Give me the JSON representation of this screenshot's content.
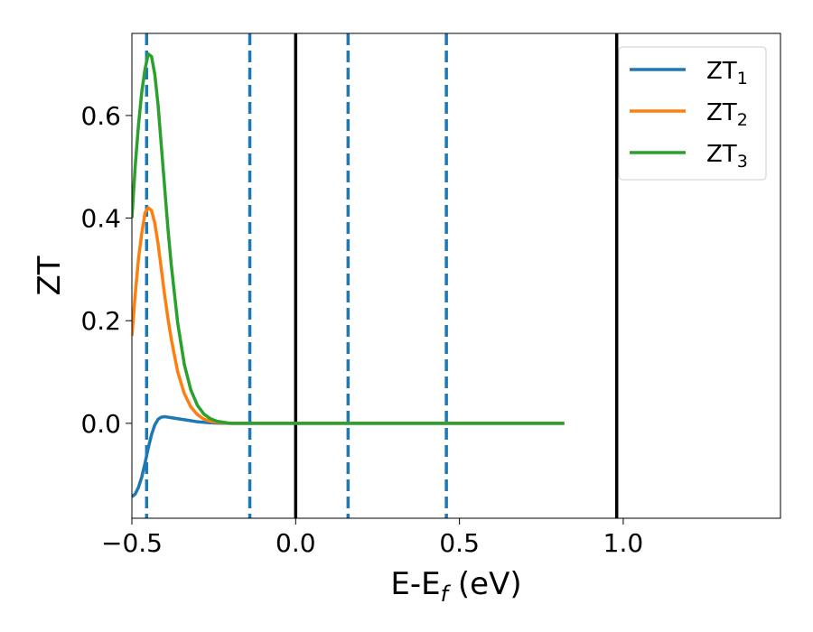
{
  "chart_data": {
    "type": "line",
    "xlabel_main": "E-E",
    "xlabel_sub": "f",
    "xlabel_unit": " (eV)",
    "ylabel": "ZT",
    "xlim": [
      -0.5,
      1.48
    ],
    "ylim": [
      -0.185,
      0.76
    ],
    "xticks": [
      {
        "value": -0.5,
        "label": "−0.5"
      },
      {
        "value": 0.0,
        "label": "0.0"
      },
      {
        "value": 0.5,
        "label": "0.5"
      },
      {
        "value": 1.0,
        "label": "1.0"
      }
    ],
    "yticks": [
      {
        "value": 0.0,
        "label": "0.0"
      },
      {
        "value": 0.2,
        "label": "0.2"
      },
      {
        "value": 0.4,
        "label": "0.4"
      },
      {
        "value": 0.6,
        "label": "0.6"
      }
    ],
    "grid": false,
    "legend_position": "top-right",
    "solid_vlines": [
      0.0,
      0.98
    ],
    "dashed_vlines": [
      -0.455,
      -0.14,
      0.16,
      0.46
    ],
    "series": [
      {
        "name_main": "ZT",
        "name_sub": "1",
        "color": "#1f77b4",
        "x": [
          -0.5,
          -0.49,
          -0.48,
          -0.47,
          -0.46,
          -0.45,
          -0.44,
          -0.43,
          -0.42,
          -0.41,
          -0.4,
          -0.39,
          -0.38,
          -0.36,
          -0.34,
          -0.32,
          -0.3,
          -0.28,
          -0.26,
          -0.24,
          -0.22,
          -0.2,
          -0.18,
          -0.16,
          -0.14,
          0.0,
          0.2,
          0.4,
          0.6,
          0.82
        ],
        "y": [
          -0.143,
          -0.138,
          -0.125,
          -0.105,
          -0.078,
          -0.048,
          -0.022,
          -0.003,
          0.008,
          0.012,
          0.013,
          0.012,
          0.011,
          0.009,
          0.007,
          0.005,
          0.003,
          0.002,
          0.001,
          0.0005,
          0.0002,
          0.0,
          0.0,
          0.0,
          0.0,
          0.0,
          0.0,
          0.0,
          0.0,
          0.0
        ]
      },
      {
        "name_main": "ZT",
        "name_sub": "2",
        "color": "#ff7f0e",
        "x": [
          -0.5,
          -0.49,
          -0.48,
          -0.47,
          -0.46,
          -0.45,
          -0.44,
          -0.43,
          -0.42,
          -0.41,
          -0.4,
          -0.39,
          -0.38,
          -0.36,
          -0.34,
          -0.32,
          -0.3,
          -0.28,
          -0.26,
          -0.24,
          -0.22,
          -0.2,
          -0.18,
          -0.16,
          -0.14,
          0.0,
          0.2,
          0.4,
          0.6,
          0.82
        ],
        "y": [
          0.17,
          0.25,
          0.32,
          0.37,
          0.41,
          0.42,
          0.415,
          0.39,
          0.35,
          0.3,
          0.25,
          0.205,
          0.165,
          0.1,
          0.058,
          0.032,
          0.017,
          0.008,
          0.004,
          0.002,
          0.001,
          0.0,
          0.0,
          0.0,
          0.0,
          0.0,
          0.0,
          0.0,
          0.0,
          0.0
        ]
      },
      {
        "name_main": "ZT",
        "name_sub": "3",
        "color": "#2ca02c",
        "x": [
          -0.5,
          -0.49,
          -0.48,
          -0.47,
          -0.46,
          -0.45,
          -0.44,
          -0.43,
          -0.42,
          -0.41,
          -0.4,
          -0.39,
          -0.38,
          -0.36,
          -0.34,
          -0.32,
          -0.3,
          -0.28,
          -0.26,
          -0.24,
          -0.22,
          -0.2,
          -0.18,
          -0.16,
          -0.14,
          0.0,
          0.2,
          0.4,
          0.6,
          0.82
        ],
        "y": [
          0.4,
          0.5,
          0.58,
          0.645,
          0.69,
          0.72,
          0.715,
          0.68,
          0.62,
          0.54,
          0.46,
          0.38,
          0.31,
          0.195,
          0.115,
          0.065,
          0.035,
          0.018,
          0.009,
          0.004,
          0.002,
          0.0,
          0.0,
          0.0,
          0.0,
          0.0,
          0.0,
          0.0,
          0.0,
          0.0
        ]
      }
    ]
  }
}
